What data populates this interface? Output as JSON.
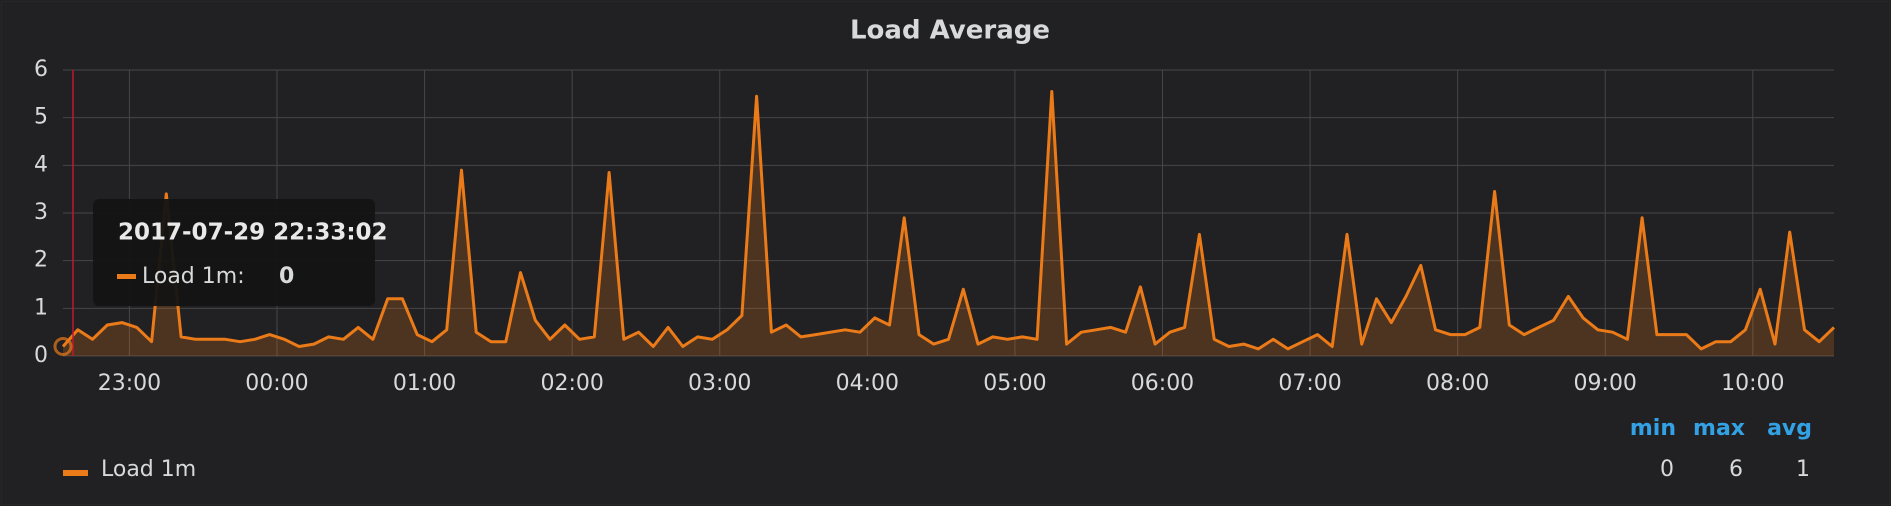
{
  "chart_data": {
    "type": "line",
    "title": "Load Average",
    "x": [
      "22:33",
      "22:39",
      "22:45",
      "22:51",
      "22:57",
      "23:03",
      "23:09",
      "23:15",
      "23:21",
      "23:27",
      "23:33",
      "23:39",
      "23:45",
      "23:51",
      "23:57",
      "00:03",
      "00:09",
      "00:15",
      "00:21",
      "00:27",
      "00:33",
      "00:39",
      "00:45",
      "00:51",
      "00:57",
      "01:03",
      "01:09",
      "01:15",
      "01:21",
      "01:27",
      "01:33",
      "01:39",
      "01:45",
      "01:51",
      "01:57",
      "02:03",
      "02:09",
      "02:15",
      "02:21",
      "02:27",
      "02:33",
      "02:39",
      "02:45",
      "02:51",
      "02:57",
      "03:03",
      "03:09",
      "03:15",
      "03:21",
      "03:27",
      "03:33",
      "03:39",
      "03:45",
      "03:51",
      "03:57",
      "04:03",
      "04:09",
      "04:15",
      "04:21",
      "04:27",
      "04:33",
      "04:39",
      "04:45",
      "04:51",
      "04:57",
      "05:03",
      "05:09",
      "05:15",
      "05:21",
      "05:27",
      "05:33",
      "05:39",
      "05:45",
      "05:51",
      "05:57",
      "06:03",
      "06:09",
      "06:15",
      "06:21",
      "06:27",
      "06:33",
      "06:39",
      "06:45",
      "06:51",
      "06:57",
      "07:03",
      "07:09",
      "07:15",
      "07:21",
      "07:27",
      "07:33",
      "07:39",
      "07:45",
      "07:51",
      "07:57",
      "08:03",
      "08:09",
      "08:15",
      "08:21",
      "08:27",
      "08:33",
      "08:39",
      "08:45",
      "08:51",
      "08:57",
      "09:03",
      "09:09",
      "09:15",
      "09:21",
      "09:27",
      "09:33",
      "09:39",
      "09:45",
      "09:51",
      "09:57",
      "10:03",
      "10:09",
      "10:15",
      "10:21",
      "10:27",
      "10:33"
    ],
    "series": [
      {
        "name": "Load 1m",
        "color": "#eb7b18",
        "values": [
          0.2,
          0.55,
          0.35,
          0.65,
          0.7,
          0.6,
          0.3,
          3.4,
          0.4,
          0.35,
          0.35,
          0.35,
          0.3,
          0.35,
          0.45,
          0.35,
          0.2,
          0.25,
          0.4,
          0.35,
          0.6,
          0.35,
          1.2,
          1.2,
          0.45,
          0.3,
          0.55,
          3.9,
          0.5,
          0.3,
          0.3,
          1.75,
          0.75,
          0.35,
          0.65,
          0.35,
          0.4,
          3.85,
          0.35,
          0.5,
          0.2,
          0.6,
          0.2,
          0.4,
          0.35,
          0.55,
          0.85,
          5.45,
          0.5,
          0.65,
          0.4,
          0.45,
          0.5,
          0.55,
          0.5,
          0.8,
          0.65,
          2.9,
          0.45,
          0.25,
          0.35,
          1.4,
          0.25,
          0.4,
          0.35,
          0.4,
          0.35,
          5.55,
          0.25,
          0.5,
          0.55,
          0.6,
          0.5,
          1.45,
          0.25,
          0.5,
          0.6,
          2.55,
          0.35,
          0.2,
          0.25,
          0.15,
          0.35,
          0.15,
          0.3,
          0.45,
          0.2,
          2.55,
          0.25,
          1.2,
          0.7,
          1.25,
          1.9,
          0.55,
          0.45,
          0.45,
          0.6,
          3.45,
          0.65,
          0.45,
          0.6,
          0.75,
          1.25,
          0.8,
          0.55,
          0.5,
          0.35,
          2.9,
          0.45,
          0.45,
          0.45,
          0.15,
          0.3,
          0.3,
          0.55,
          1.4,
          0.25,
          2.6,
          0.55,
          0.3,
          0.6
        ]
      }
    ],
    "xlim": [
      "22:33",
      "10:33"
    ],
    "xticks": [
      "23:00",
      "00:00",
      "01:00",
      "02:00",
      "03:00",
      "04:00",
      "05:00",
      "06:00",
      "07:00",
      "08:00",
      "09:00",
      "10:00"
    ],
    "ylim": [
      0,
      6
    ],
    "yticks": [
      0,
      1,
      2,
      3,
      4,
      5,
      6
    ],
    "grid": true,
    "legend": {
      "columns": [
        "min",
        "max",
        "avg"
      ],
      "min": 0,
      "max": 6,
      "avg": 1
    },
    "tooltip": {
      "time": "2017-07-29 22:33:02",
      "label": "Load 1m:",
      "value": "0"
    }
  }
}
